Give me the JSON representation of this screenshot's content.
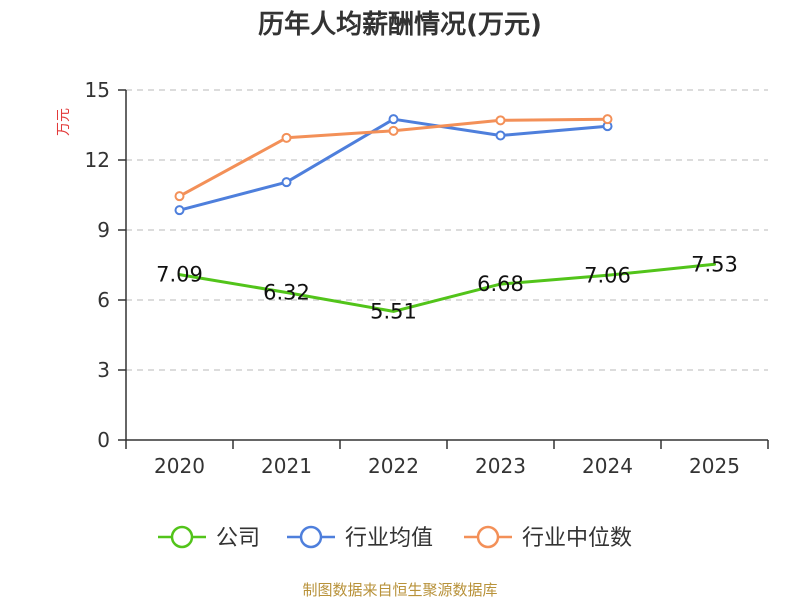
{
  "chart_data": {
    "type": "line",
    "title": "历年人均薪酬情况(万元)",
    "ylabel": "万元",
    "xlabel": "",
    "categories": [
      "2020",
      "2021",
      "2022",
      "2023",
      "2024",
      "2025"
    ],
    "ylim": [
      0,
      15
    ],
    "yticks": [
      "0",
      "3",
      "6",
      "9",
      "12",
      "15"
    ],
    "grid": true,
    "legend_position": "bottom",
    "series": [
      {
        "name": "公司",
        "color": "#52c41a",
        "values": [
          7.09,
          6.32,
          5.51,
          6.68,
          7.06,
          7.53
        ],
        "labels": [
          "7.09",
          "6.32",
          "5.51",
          "6.68",
          "7.06",
          "7.53"
        ],
        "show_labels": true,
        "show_markers": false
      },
      {
        "name": "行业均值",
        "color": "#4e7fdc",
        "values": [
          9.85,
          11.05,
          13.75,
          13.05,
          13.45,
          null
        ],
        "show_labels": false,
        "show_markers": true
      },
      {
        "name": "行业中位数",
        "color": "#f39058",
        "values": [
          10.45,
          12.95,
          13.25,
          13.7,
          13.75,
          null
        ],
        "show_labels": false,
        "show_markers": true
      }
    ]
  },
  "footer": "制图数据来自恒生聚源数据库"
}
